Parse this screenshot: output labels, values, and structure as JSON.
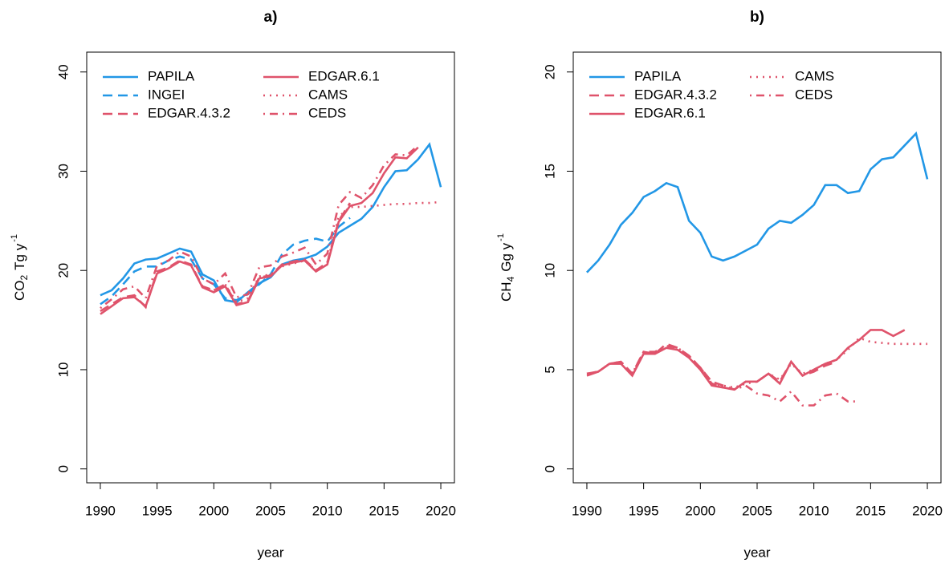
{
  "chart_data": [
    {
      "type": "line",
      "title": "a)",
      "xlabel": "year",
      "ylabel": {
        "text": "CO",
        "sub": "2",
        "unit": "Tg  y",
        "sup": "-1"
      },
      "x": [
        1990,
        1991,
        1992,
        1993,
        1994,
        1995,
        1996,
        1997,
        1998,
        1999,
        2000,
        2001,
        2002,
        2003,
        2004,
        2005,
        2006,
        2007,
        2008,
        2009,
        2010,
        2011,
        2012,
        2013,
        2014,
        2015,
        2016,
        2017,
        2018,
        2019,
        2020
      ],
      "xlim": [
        1988.8,
        2021.2
      ],
      "xticks": [
        1990,
        1995,
        2000,
        2005,
        2010,
        2015,
        2020
      ],
      "ylim": [
        -1.4,
        42
      ],
      "yticks": [
        0,
        10,
        20,
        30,
        40
      ],
      "series": [
        {
          "name": "PAPILA",
          "color": "#2297E6",
          "dash": "solid",
          "values": [
            17.5,
            18.0,
            19.2,
            20.7,
            21.1,
            21.2,
            21.7,
            22.2,
            21.9,
            19.6,
            19.0,
            17.0,
            16.8,
            17.8,
            18.7,
            19.3,
            20.6,
            21.0,
            21.2,
            21.6,
            22.4,
            23.8,
            24.5,
            25.2,
            26.4,
            28.4,
            30.0,
            30.1,
            31.2,
            32.7,
            28.4
          ]
        },
        {
          "name": "INGEI",
          "color": "#2297E6",
          "dash": "dashed",
          "values": [
            16.6,
            17.4,
            18.6,
            19.9,
            20.4,
            20.4,
            21.0,
            21.4,
            21.1,
            19.2,
            18.6,
            17.2,
            17.0,
            17.6,
            18.6,
            19.6,
            21.6,
            22.6,
            23.0,
            23.2,
            22.9,
            24.4,
            25.3,
            null,
            null,
            null,
            null,
            null,
            null,
            null,
            null
          ]
        },
        {
          "name": "EDGAR.4.3.2",
          "color": "#DF536B",
          "dash": "dashed",
          "values": [
            15.9,
            16.6,
            17.3,
            17.5,
            16.3,
            19.9,
            20.3,
            21.0,
            20.6,
            18.4,
            18.0,
            18.6,
            16.6,
            16.9,
            19.3,
            19.5,
            20.6,
            20.9,
            21.1,
            20.0,
            20.8,
            25.0,
            26.8,
            null,
            null,
            null,
            null,
            null,
            null,
            null,
            null
          ]
        },
        {
          "name": "EDGAR.6.1",
          "color": "#DF536B",
          "dash": "solid",
          "values": [
            15.6,
            16.4,
            17.2,
            17.3,
            16.4,
            19.7,
            20.2,
            20.9,
            20.5,
            18.3,
            17.8,
            18.4,
            16.5,
            16.8,
            19.2,
            19.4,
            20.5,
            20.8,
            21.0,
            19.9,
            20.6,
            24.9,
            26.5,
            26.8,
            27.8,
            29.8,
            31.4,
            31.3,
            32.4,
            null,
            null
          ]
        },
        {
          "name": "CAMS",
          "color": "#DF536B",
          "dash": "dotted",
          "values": [
            null,
            null,
            null,
            null,
            null,
            null,
            null,
            null,
            null,
            null,
            18.0,
            18.6,
            16.8,
            17.2,
            19.4,
            19.6,
            20.4,
            20.7,
            21.0,
            20.0,
            20.8,
            25.4,
            26.4,
            26.4,
            26.5,
            26.6,
            26.7,
            26.7,
            26.8,
            26.8,
            26.9
          ]
        },
        {
          "name": "CEDS",
          "color": "#DF536B",
          "dash": "dotdash",
          "values": [
            16.2,
            17.1,
            18.1,
            18.4,
            17.2,
            20.5,
            21.0,
            21.9,
            21.4,
            19.2,
            18.6,
            19.7,
            17.3,
            17.6,
            20.3,
            20.5,
            21.4,
            21.8,
            22.3,
            20.6,
            21.7,
            26.6,
            27.9,
            27.3,
            28.6,
            30.6,
            31.7,
            31.6,
            32.6,
            null,
            null
          ]
        }
      ]
    },
    {
      "type": "line",
      "title": "b)",
      "xlabel": "year",
      "ylabel": {
        "text": "CH",
        "sub": "4",
        "unit": "Gg  y",
        "sup": "-1"
      },
      "x": [
        1990,
        1991,
        1992,
        1993,
        1994,
        1995,
        1996,
        1997,
        1998,
        1999,
        2000,
        2001,
        2002,
        2003,
        2004,
        2005,
        2006,
        2007,
        2008,
        2009,
        2010,
        2011,
        2012,
        2013,
        2014,
        2015,
        2016,
        2017,
        2018,
        2019,
        2020
      ],
      "xlim": [
        1988.8,
        2021.2
      ],
      "xticks": [
        1990,
        1995,
        2000,
        2005,
        2010,
        2015,
        2020
      ],
      "ylim": [
        -0.7,
        21
      ],
      "yticks": [
        0,
        5,
        10,
        15,
        20
      ],
      "series": [
        {
          "name": "PAPILA",
          "color": "#2297E6",
          "dash": "solid",
          "values": [
            9.9,
            10.5,
            11.3,
            12.3,
            12.9,
            13.7,
            14.0,
            14.4,
            14.2,
            12.5,
            11.9,
            10.7,
            10.5,
            10.7,
            11.0,
            11.3,
            12.1,
            12.5,
            12.4,
            12.8,
            13.3,
            14.3,
            14.3,
            13.9,
            14.0,
            15.1,
            15.6,
            15.7,
            16.3,
            16.9,
            14.6
          ]
        },
        {
          "name": "EDGAR.4.3.2",
          "color": "#DF536B",
          "dash": "dashed",
          "values": [
            4.8,
            4.9,
            5.3,
            5.4,
            4.8,
            5.9,
            5.8,
            6.3,
            6.1,
            5.7,
            5.1,
            4.4,
            4.2,
            4.0,
            4.4,
            4.4,
            4.8,
            4.4,
            5.4,
            4.7,
            4.9,
            5.2,
            5.4,
            null,
            null,
            null,
            null,
            null,
            null,
            null,
            null
          ]
        },
        {
          "name": "EDGAR.6.1",
          "color": "#DF536B",
          "dash": "solid",
          "values": [
            4.7,
            4.9,
            5.3,
            5.3,
            4.7,
            5.8,
            5.8,
            6.1,
            6.0,
            5.6,
            5.0,
            4.2,
            4.1,
            4.0,
            4.4,
            4.4,
            4.8,
            4.3,
            5.4,
            4.7,
            5.0,
            5.3,
            5.5,
            6.1,
            6.5,
            7.0,
            7.0,
            6.7,
            7.0,
            null,
            null
          ]
        },
        {
          "name": "CAMS",
          "color": "#DF536B",
          "dash": "dotted",
          "values": [
            null,
            null,
            null,
            null,
            null,
            null,
            null,
            null,
            null,
            null,
            5.1,
            4.3,
            4.2,
            4.1,
            4.3,
            4.4,
            4.8,
            4.5,
            5.3,
            4.8,
            5.0,
            5.3,
            5.5,
            6.0,
            6.6,
            6.4,
            6.35,
            6.3,
            6.3,
            6.3,
            6.3
          ]
        },
        {
          "name": "CEDS",
          "color": "#DF536B",
          "dash": "dotdash",
          "values": [
            4.8,
            4.9,
            5.3,
            5.4,
            4.8,
            5.9,
            5.9,
            6.2,
            6.1,
            5.7,
            5.1,
            4.3,
            4.1,
            4.0,
            4.2,
            3.8,
            3.7,
            3.4,
            3.9,
            3.2,
            3.2,
            3.7,
            3.8,
            3.4,
            3.4,
            null,
            null,
            null,
            null,
            null,
            null
          ]
        }
      ]
    }
  ]
}
